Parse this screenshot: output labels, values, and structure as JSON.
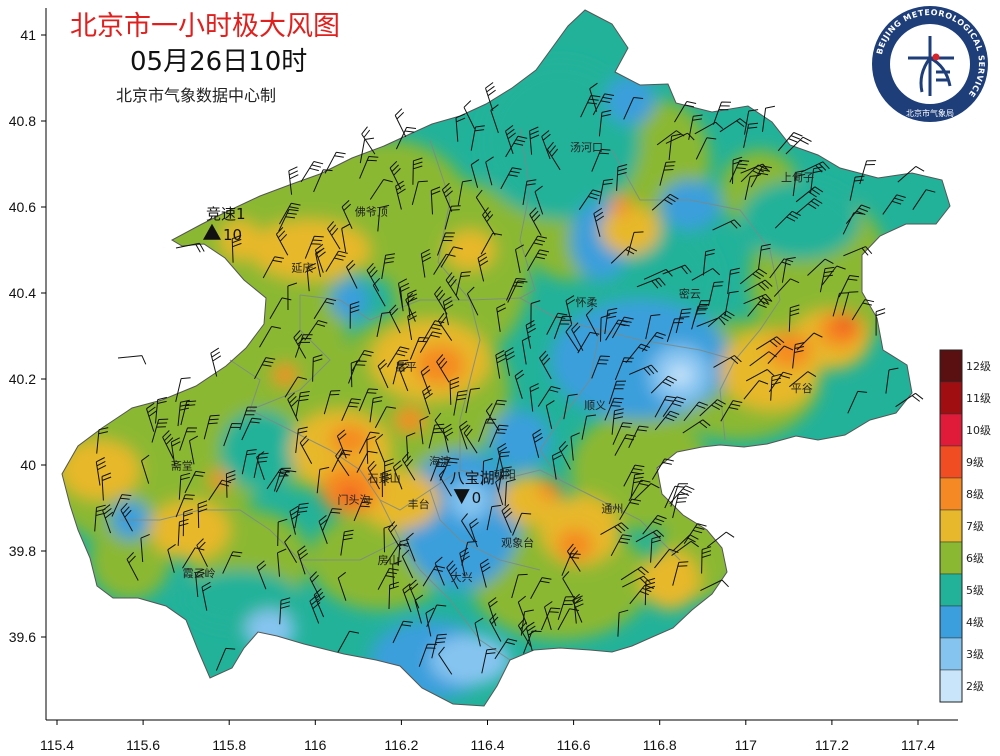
{
  "title": {
    "main": "北京市一小时极大风图",
    "time": "05月26日10时",
    "source": "北京市气象数据中心制"
  },
  "logo": {
    "text": "BEIJING METEOROLOGICAL SERVICE",
    "name_cn": "北京市气象局",
    "colors": {
      "ring": "#1e3e7a",
      "inner": "#ffffff",
      "accent": "#d9252a"
    }
  },
  "axes": {
    "x_ticks": [
      "115.4",
      "115.6",
      "115.8",
      "116",
      "116.2",
      "116.4",
      "116.6",
      "116.8",
      "117",
      "117.2",
      "117.4"
    ],
    "y_ticks": [
      "41",
      "40.8",
      "40.6",
      "40.4",
      "40.2",
      "40",
      "39.8",
      "39.6"
    ]
  },
  "legend": {
    "items": [
      {
        "label": "12级",
        "color": "#5a1010"
      },
      {
        "label": "11级",
        "color": "#a00e12"
      },
      {
        "label": "10级",
        "color": "#e01b3a"
      },
      {
        "label": "9级",
        "color": "#f04e22"
      },
      {
        "label": "8级",
        "color": "#f58a24"
      },
      {
        "label": "7级",
        "color": "#e7b82c"
      },
      {
        "label": "6级",
        "color": "#8bb833"
      },
      {
        "label": "5级",
        "color": "#22b29a"
      },
      {
        "label": "4级",
        "color": "#3a9fdc"
      },
      {
        "label": "3级",
        "color": "#86c4f0"
      },
      {
        "label": "2级",
        "color": "#c9e5fa"
      }
    ]
  },
  "places": [
    {
      "name": "汤河口",
      "lon": 116.63,
      "lat": 40.73
    },
    {
      "name": "上甸子",
      "lon": 117.12,
      "lat": 40.66
    },
    {
      "name": "佛爷顶",
      "lon": 116.13,
      "lat": 40.58
    },
    {
      "name": "延庆",
      "lon": 115.97,
      "lat": 40.45
    },
    {
      "name": "怀柔",
      "lon": 116.63,
      "lat": 40.37
    },
    {
      "name": "密云",
      "lon": 116.87,
      "lat": 40.39
    },
    {
      "name": "昌平",
      "lon": 116.21,
      "lat": 40.22
    },
    {
      "name": "平谷",
      "lon": 117.13,
      "lat": 40.17
    },
    {
      "name": "顺义",
      "lon": 116.65,
      "lat": 40.13
    },
    {
      "name": "斋堂",
      "lon": 115.69,
      "lat": 39.99
    },
    {
      "name": "海淀",
      "lon": 116.29,
      "lat": 40.0
    },
    {
      "name": "朝阳",
      "lon": 116.44,
      "lat": 39.97
    },
    {
      "name": "石景山",
      "lon": 116.16,
      "lat": 39.96
    },
    {
      "name": "门头沟",
      "lon": 116.09,
      "lat": 39.91
    },
    {
      "name": "丰台",
      "lon": 116.24,
      "lat": 39.9
    },
    {
      "name": "通州",
      "lon": 116.69,
      "lat": 39.89
    },
    {
      "name": "观象台",
      "lon": 116.47,
      "lat": 39.81
    },
    {
      "name": "房山",
      "lon": 116.17,
      "lat": 39.77
    },
    {
      "name": "霞云岭",
      "lon": 115.73,
      "lat": 39.74
    },
    {
      "name": "大兴",
      "lon": 116.34,
      "lat": 39.73
    }
  ],
  "markers": [
    {
      "name": "竞速1",
      "value": "10",
      "type": "max",
      "lon": 115.76,
      "lat": 40.54
    },
    {
      "name": "八宝湖",
      "value": "0",
      "type": "min",
      "lon": 116.34,
      "lat": 39.93
    }
  ],
  "wind_field": {
    "units": "级",
    "scale_colors": [
      "#c9e5fa",
      "#86c4f0",
      "#3a9fdc",
      "#22b29a",
      "#8bb833",
      "#e7b82c",
      "#f58a24",
      "#f04e22"
    ],
    "color_hexes": {
      "scale_2": "#c9e5fa",
      "scale_3": "#86c4f0",
      "scale_4": "#3a9fdc",
      "scale_5": "#22b29a",
      "scale_6": "#8bb833",
      "scale_7": "#e7b82c",
      "scale_8": "#f58a24",
      "scale_9": "#f04e22"
    }
  }
}
